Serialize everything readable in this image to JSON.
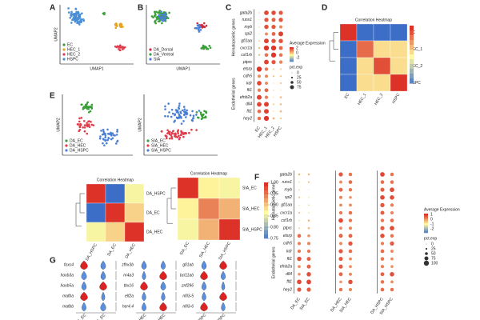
{
  "panels": {
    "A": {
      "label": "A",
      "xlabel": "UMAP1",
      "ylabel": "UMAP2",
      "legend": [
        {
          "name": "EC",
          "color": "#3aa03a"
        },
        {
          "name": "HEC_1",
          "color": "#e8a21a"
        },
        {
          "name": "HEC_2",
          "color": "#e03c4c"
        },
        {
          "name": "HSPC",
          "color": "#4a8fd6"
        }
      ]
    },
    "B": {
      "label": "B",
      "xlabel": "UMAP1",
      "legend": [
        {
          "name": "DA_Dorsal",
          "color": "#cc2a3a"
        },
        {
          "name": "DA_Ventral",
          "color": "#3aa03a"
        },
        {
          "name": "SIA",
          "color": "#4a7fd6"
        }
      ]
    },
    "C": {
      "label": "C",
      "groups": [
        "Hematopoietic genes",
        "Endothelial genes"
      ],
      "genes": [
        [
          "gata2b",
          "runx1",
          "myb",
          "spi2",
          "gfi1aa",
          "cxcr1a",
          "csf1rb",
          "ptprc"
        ],
        [
          "etsrp",
          "cdh5",
          "kdr",
          "fli1",
          "efnb2a",
          "dll4",
          "flt1",
          "hey2"
        ]
      ],
      "x": [
        "EC",
        "HEC_1",
        "HEC_2",
        "HSPC"
      ],
      "expr_title": "Average Expression",
      "expr_ticks": [
        2,
        0,
        -2
      ],
      "pct_title": "pct.exp",
      "pct_ticks": [
        0,
        25,
        50,
        75
      ]
    },
    "D": {
      "label": "D",
      "title": "Correlation Heatmap",
      "names": [
        "EC",
        "HEC_1",
        "HEC_2",
        "HSPC"
      ],
      "matrix": [
        [
          1,
          0.3,
          0.3,
          0.3
        ],
        [
          0.3,
          0.9,
          0.7,
          0.7
        ],
        [
          0.3,
          0.7,
          0.95,
          0.7
        ],
        [
          0.3,
          0.7,
          0.7,
          1
        ]
      ]
    },
    "E": {
      "label": "E",
      "ylabel": "UMAP2",
      "umaps": [
        {
          "legend": [
            {
              "name": "DA_EC",
              "color": "#3aa03a"
            },
            {
              "name": "DA_HEC",
              "color": "#e03c4c"
            },
            {
              "name": "DA_HSPC",
              "color": "#4a7fd6"
            }
          ]
        },
        {
          "legend": [
            {
              "name": "SIA_EC",
              "color": "#3aa03a"
            },
            {
              "name": "SIA_HEC",
              "color": "#e03c4c"
            },
            {
              "name": "SIA_HSPC",
              "color": "#4a7fd6"
            }
          ]
        }
      ],
      "heatmaps": [
        {
          "title": "Correlation Heatmap",
          "names": [
            "DA_HSPC",
            "DA_EC",
            "DA_HEC"
          ],
          "matrix": [
            [
              1,
              0.75,
              0.87
            ],
            [
              0.75,
              1,
              0.9
            ],
            [
              0.87,
              0.9,
              1
            ]
          ]
        },
        {
          "title": "Correlation Heatmap",
          "names": [
            "SIA_EC",
            "SIA_HEC",
            "SIA_HSPC"
          ],
          "matrix": [
            [
              1,
              0.88,
              0.87
            ],
            [
              0.88,
              0.95,
              0.92
            ],
            [
              0.87,
              0.92,
              1
            ]
          ]
        }
      ],
      "colorbar_ticks": [
        {
          "value": 1,
          "label": "1.00"
        },
        {
          "value": 0.95,
          "label": "0.95"
        },
        {
          "value": 0.9,
          "label": "0.90"
        },
        {
          "value": 0.85,
          "label": "0.85"
        },
        {
          "value": 0.8,
          "label": "0.80"
        },
        {
          "value": 0.75,
          "label": "0.75"
        }
      ]
    },
    "F": {
      "label": "F",
      "groups": [
        "Hematopoietic genes",
        "Endothelial genes"
      ],
      "genes": [
        [
          "gata2b",
          "runx1",
          "myb",
          "spi2",
          "gfi1aa",
          "cxcr1a",
          "csf1rb",
          "ptprc"
        ],
        [
          "etsrp",
          "cdh5",
          "kdr",
          "fli1",
          "efnb2a",
          "dll4",
          "flt1",
          "hey2"
        ]
      ],
      "x": [
        [
          "DA_EC",
          "SIA_EC"
        ],
        [
          "DA_HEC",
          "SIA_HEC"
        ],
        [
          "DA_HSPC",
          "SIA_HSPC"
        ]
      ],
      "expr_title": "Average Expression",
      "expr_ticks": [
        1,
        0,
        -1,
        -2
      ],
      "pct_title": "pct.exp",
      "pct_ticks": [
        0,
        25,
        50,
        75,
        100
      ]
    },
    "G": {
      "label": "G",
      "genes": [
        [
          "foxc4",
          "hoxb3a",
          "hoxb5a",
          "mafba",
          "mafbb"
        ],
        [
          "zfhx3b",
          "nr4a3",
          "tbx16",
          "elf2a",
          "her4.4"
        ],
        [
          "gfi1ab",
          "bcl11ab",
          "znf296",
          "nfil3-5",
          "nfil3-6"
        ]
      ],
      "x": [
        [
          "DA_EC",
          "SIA_EC"
        ],
        [
          "DA_HEC",
          "SIA_HEC"
        ],
        [
          "DA_HSPC",
          "SIA_HSPC"
        ]
      ]
    }
  }
}
